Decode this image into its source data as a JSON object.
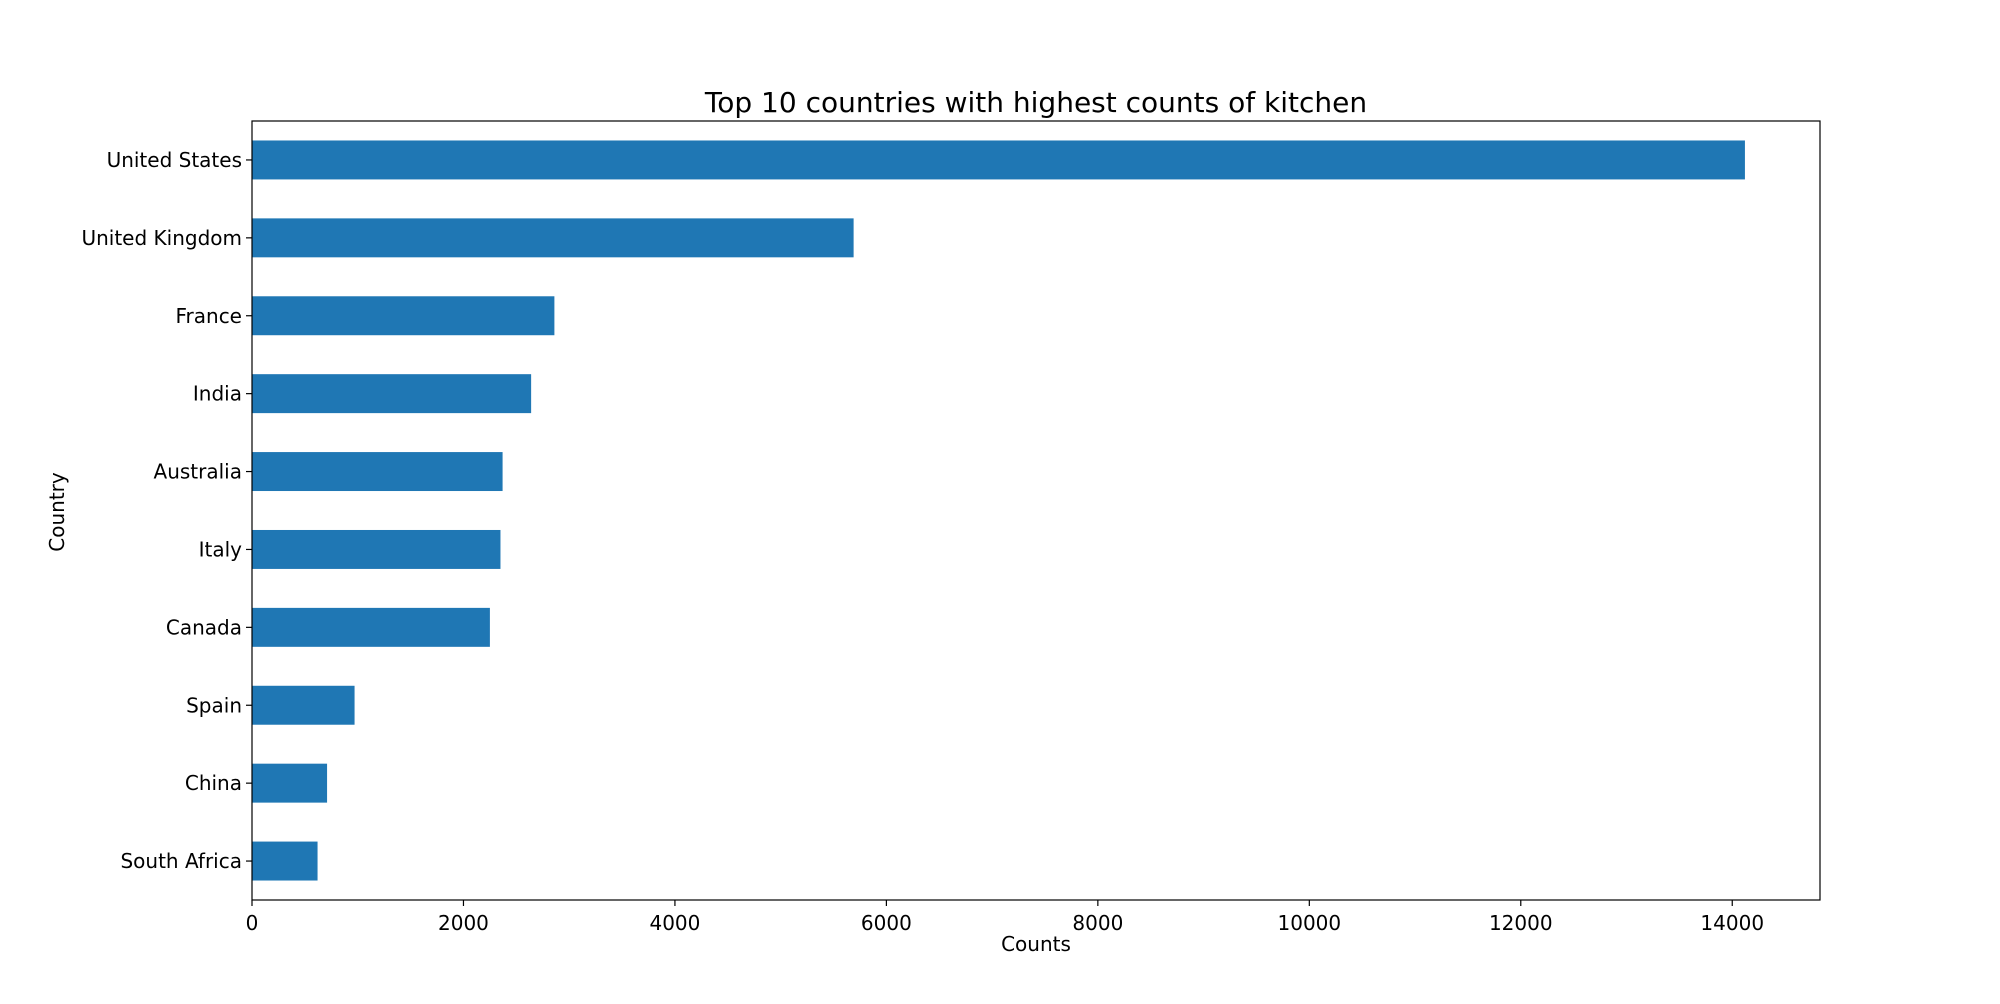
{
  "chart_data": {
    "type": "bar",
    "orientation": "horizontal",
    "title": "Top 10 countries with highest counts of kitchen",
    "xlabel": "Counts",
    "ylabel": "Country",
    "categories": [
      "United States",
      "United Kingdom",
      "France",
      "India",
      "Australia",
      "Italy",
      "Canada",
      "Spain",
      "China",
      "South Africa"
    ],
    "values": [
      14120,
      5690,
      2860,
      2640,
      2370,
      2350,
      2250,
      970,
      710,
      620
    ],
    "xlim": [
      0,
      14830
    ],
    "xticks": [
      0,
      2000,
      4000,
      6000,
      8000,
      10000,
      12000,
      14000
    ],
    "xtick_labels": [
      "0",
      "2000",
      "4000",
      "6000",
      "8000",
      "10000",
      "12000",
      "14000"
    ],
    "bar_color": "#1f77b4",
    "grid": false,
    "legend": "none"
  }
}
